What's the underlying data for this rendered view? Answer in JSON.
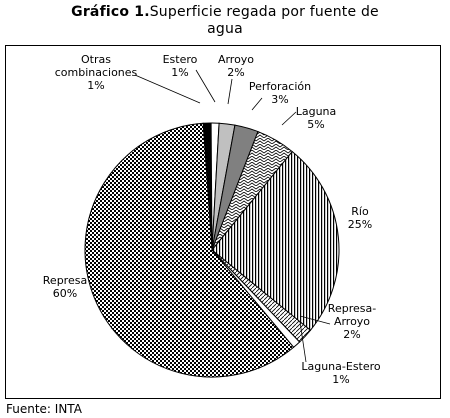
{
  "title_bold": "Gráfico 1.",
  "title_line1": "Superficie regada por fuente de",
  "title_line2": "agua",
  "source": "Fuente: INTA",
  "chart_data": {
    "type": "pie",
    "title": "Gráfico 1.Superficie regada por fuente de agua",
    "slices": [
      {
        "label": "Otras combinaciones",
        "value": 1,
        "display": "1%",
        "fill": "#000000"
      },
      {
        "label": "Estero",
        "value": 1,
        "display": "1%",
        "fill": "#ffffff"
      },
      {
        "label": "Arroyo",
        "value": 2,
        "display": "2%",
        "fill": "#c0c0c0"
      },
      {
        "label": "Perforación",
        "value": 3,
        "display": "3%",
        "fill": "#808080"
      },
      {
        "label": "Laguna",
        "value": 5,
        "display": "5%",
        "fill": "pattern:bricks"
      },
      {
        "label": "Río",
        "value": 25,
        "display": "25%",
        "fill": "pattern:vlines"
      },
      {
        "label": "Represa-Arroyo",
        "value": 2,
        "display": "2%",
        "fill": "pattern:diag"
      },
      {
        "label": "Laguna-Estero",
        "value": 1,
        "display": "1%",
        "fill": "#ffffff"
      },
      {
        "label": "Represa",
        "value": 60,
        "display": "60%",
        "fill": "pattern:checker"
      }
    ]
  }
}
